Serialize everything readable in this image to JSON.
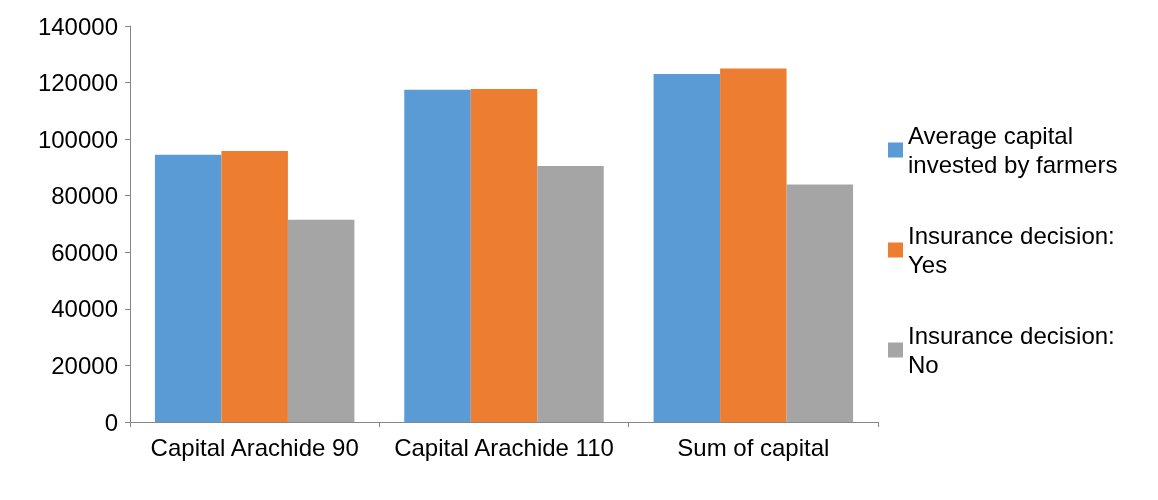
{
  "chart_data": {
    "type": "bar",
    "categories": [
      "Capital Arachide 90",
      "Capital Arachide 110",
      "Sum of capital"
    ],
    "series": [
      {
        "name": "Average capital invested by farmers",
        "color": "#5b9bd5",
        "values": [
          94500,
          117500,
          123000
        ]
      },
      {
        "name": "Insurance decision: Yes",
        "color": "#ed7d31",
        "values": [
          95800,
          117700,
          125000
        ]
      },
      {
        "name": "Insurance decision: No",
        "color": "#a5a5a5",
        "values": [
          71500,
          90500,
          84000
        ]
      }
    ],
    "ylim": [
      0,
      140000
    ],
    "yticks": [
      0,
      20000,
      40000,
      60000,
      80000,
      100000,
      120000,
      140000
    ],
    "grid": false,
    "legend": "right"
  }
}
